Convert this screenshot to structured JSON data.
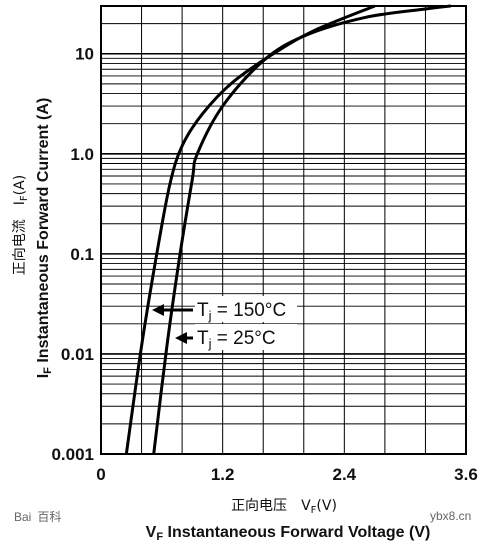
{
  "chart_data": {
    "type": "line",
    "xlabel": "V",
    "xlabel_sub": "F",
    "xlabel_text": " Instantaneous Forward Voltage (V)",
    "xlabel_cn": "正向电压",
    "xlabel_cn_symbol": "V",
    "xlabel_cn_sub": "F",
    "xlabel_cn_unit": "(V)",
    "ylabel": "I",
    "ylabel_sub": "F",
    "ylabel_text": " Instantaneous Forward Current (A)",
    "ylabel_cn": "正向电流",
    "ylabel_cn_symbol": "I",
    "ylabel_cn_sub": "F",
    "ylabel_cn_unit": "(A)",
    "xlim": [
      0,
      3.6
    ],
    "ylim": [
      0.001,
      30
    ],
    "yscale": "log",
    "grid": true,
    "x_ticks": [
      {
        "value": 0,
        "label": "0"
      },
      {
        "value": 1.2,
        "label": "1.2"
      },
      {
        "value": 2.4,
        "label": "2.4"
      },
      {
        "value": 3.6,
        "label": "3.6"
      }
    ],
    "y_ticks": [
      {
        "value": 0.001,
        "label": "0.001"
      },
      {
        "value": 0.01,
        "label": "0.01"
      },
      {
        "value": 0.1,
        "label": "0.1"
      },
      {
        "value": 1,
        "label": "1.0"
      },
      {
        "value": 10,
        "label": "10"
      }
    ],
    "series": [
      {
        "name": "Tj = 150°C",
        "points": [
          [
            0.25,
            0.001
          ],
          [
            0.4,
            0.012
          ],
          [
            0.55,
            0.1
          ],
          [
            0.68,
            0.5
          ],
          [
            0.8,
            1.2
          ],
          [
            1.0,
            2.5
          ],
          [
            1.3,
            5.2
          ],
          [
            1.7,
            10
          ],
          [
            2.1,
            17
          ],
          [
            2.7,
            30
          ]
        ]
      },
      {
        "name": "Tj = 25°C",
        "points": [
          [
            0.52,
            0.001
          ],
          [
            0.65,
            0.012
          ],
          [
            0.78,
            0.1
          ],
          [
            0.9,
            0.55
          ],
          [
            0.95,
            1.0
          ],
          [
            1.2,
            3.0
          ],
          [
            1.6,
            8.5
          ],
          [
            2.0,
            15
          ],
          [
            2.6,
            23
          ],
          [
            3.2,
            28
          ],
          [
            3.45,
            30
          ]
        ]
      }
    ],
    "annotations": [
      {
        "text": "T",
        "sub": "j",
        "rest": " = 150°C",
        "series": 0
      },
      {
        "text": "T",
        "sub": "j",
        "rest": " = 25°C",
        "series": 1
      }
    ]
  },
  "watermark": {
    "left_brand": "Bai",
    "left_brand_2": "百科",
    "right": "ybx8.cn"
  }
}
